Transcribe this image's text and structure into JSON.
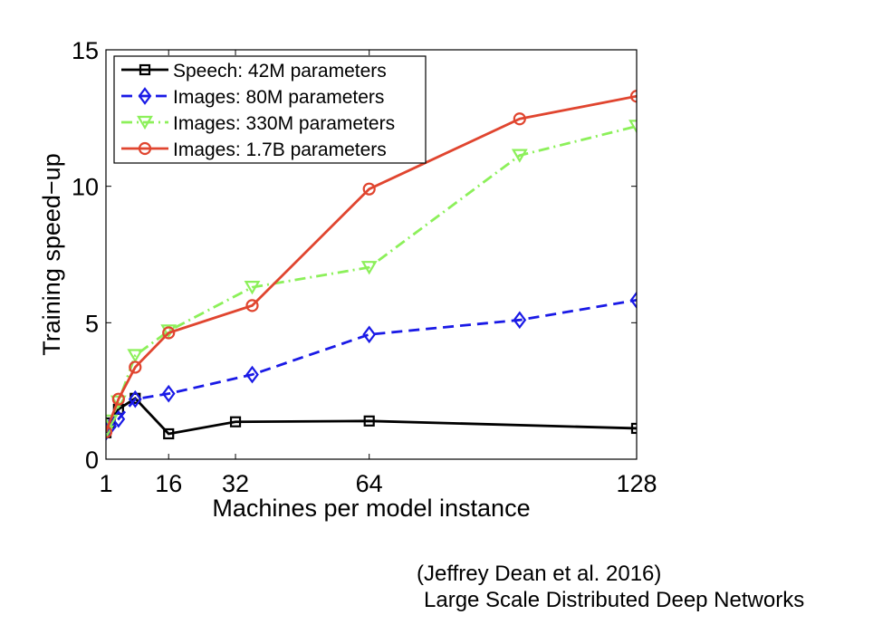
{
  "chart_data": {
    "type": "line",
    "title": "",
    "xlabel": "Machines per model instance",
    "ylabel": "Training speed−up",
    "xlim": [
      1,
      128
    ],
    "ylim": [
      0,
      15
    ],
    "xticks": [
      1,
      16,
      32,
      64,
      128
    ],
    "yticks": [
      0,
      5,
      10,
      15
    ],
    "grid": false,
    "legend_position": "top-left",
    "series": [
      {
        "name": "Speech: 42M parameters",
        "color": "#000000",
        "dash": "solid",
        "marker": "square",
        "x": [
          1,
          2,
          4,
          8,
          16,
          32,
          64,
          128
        ],
        "y": [
          0.97,
          1.33,
          1.83,
          2.23,
          0.93,
          1.37,
          1.4,
          1.13
        ]
      },
      {
        "name": "Images: 80M parameters",
        "color": "#1a1ae6",
        "dash": "dashed",
        "marker": "diamond",
        "x": [
          1,
          2,
          4,
          8,
          16,
          36,
          64,
          100,
          128
        ],
        "y": [
          1.0,
          1.2,
          1.47,
          2.2,
          2.4,
          3.1,
          4.57,
          5.1,
          5.83
        ]
      },
      {
        "name": "Images: 330M parameters",
        "color": "#8cf05a",
        "dash": "dashdot",
        "marker": "triangle-down",
        "x": [
          1,
          2,
          4,
          8,
          16,
          36,
          64,
          100,
          128
        ],
        "y": [
          1.0,
          1.4,
          2.1,
          3.8,
          4.7,
          6.3,
          7.03,
          11.13,
          12.2
        ]
      },
      {
        "name": "Images: 1.7B parameters",
        "color": "#e0452f",
        "dash": "solid",
        "marker": "circle",
        "x": [
          1,
          4,
          8,
          16,
          36,
          64,
          100,
          128
        ],
        "y": [
          1.0,
          2.2,
          3.37,
          4.63,
          5.63,
          9.9,
          12.47,
          13.3
        ]
      }
    ]
  },
  "captions": {
    "line1": "(Jeffrey Dean et al. 2016)",
    "line2": "Large Scale Distributed Deep Networks"
  }
}
